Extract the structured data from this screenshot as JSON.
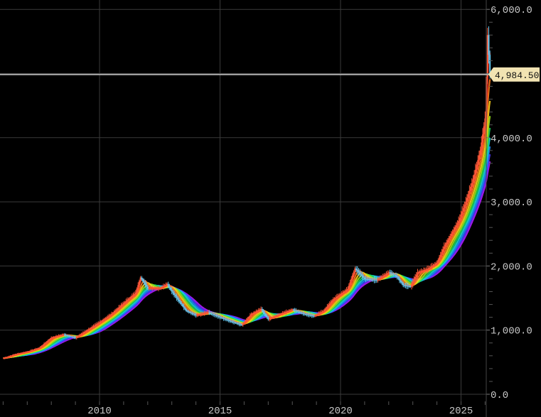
{
  "chart_data": {
    "type": "line",
    "title": "",
    "xlabel": "",
    "ylabel": "",
    "x_ticks": [
      "2010",
      "2015",
      "2020",
      "2025"
    ],
    "y_ticks": [
      "0.0",
      "1,000.0",
      "2,000.0",
      "3,000.0",
      "4,000.0",
      "5,000.0",
      "6,000.0"
    ],
    "ylim": [
      0,
      6000
    ],
    "xlim": [
      2006.0,
      2026.5
    ],
    "grid": true,
    "legend": "none",
    "last_price": {
      "label": "4,984.50",
      "value": 4984.5
    },
    "colors": {
      "background": "#000000",
      "grid": "#3a3a3a",
      "price_line": "#a8a8a8",
      "price_tag": "#f1e3b2",
      "ribbon": [
        "#ff2a1a",
        "#ff7a1a",
        "#ffd21a",
        "#9be81a",
        "#1ad65a",
        "#1ad6d6",
        "#1a8cff",
        "#4a3aff",
        "#b11aff"
      ],
      "candle_up": "#ff5a3a",
      "candle_down": "#62c8f0"
    },
    "series": [
      {
        "x": [
          2006.0,
          2006.5,
          2007.0,
          2007.5,
          2008.0,
          2008.5,
          2009.0,
          2009.5,
          2010.0,
          2010.5,
          2011.0,
          2011.5,
          2011.7,
          2012.0,
          2012.5,
          2012.8,
          2013.0,
          2013.3,
          2013.6,
          2014.0,
          2014.5,
          2015.0,
          2015.5,
          2015.9,
          2016.3,
          2016.7,
          2017.0,
          2017.5,
          2018.0,
          2018.5,
          2018.9,
          2019.3,
          2019.7,
          2020.0,
          2020.3,
          2020.6,
          2021.0,
          2021.5,
          2022.0,
          2022.3,
          2022.6,
          2022.9,
          2023.2,
          2023.6,
          2024.0,
          2024.3,
          2024.6,
          2024.9,
          2025.2,
          2025.5,
          2025.8,
          2026.0,
          2026.1,
          2026.2
        ],
        "values": [
          560,
          620,
          660,
          720,
          880,
          930,
          880,
          1000,
          1120,
          1250,
          1420,
          1580,
          1820,
          1650,
          1650,
          1720,
          1600,
          1450,
          1300,
          1230,
          1280,
          1200,
          1130,
          1080,
          1250,
          1330,
          1170,
          1250,
          1320,
          1250,
          1220,
          1300,
          1480,
          1560,
          1640,
          1960,
          1800,
          1780,
          1900,
          1850,
          1700,
          1680,
          1900,
          1950,
          2050,
          2300,
          2500,
          2700,
          3000,
          3350,
          3800,
          4300,
          5600,
          4984.5
        ]
      }
    ]
  }
}
